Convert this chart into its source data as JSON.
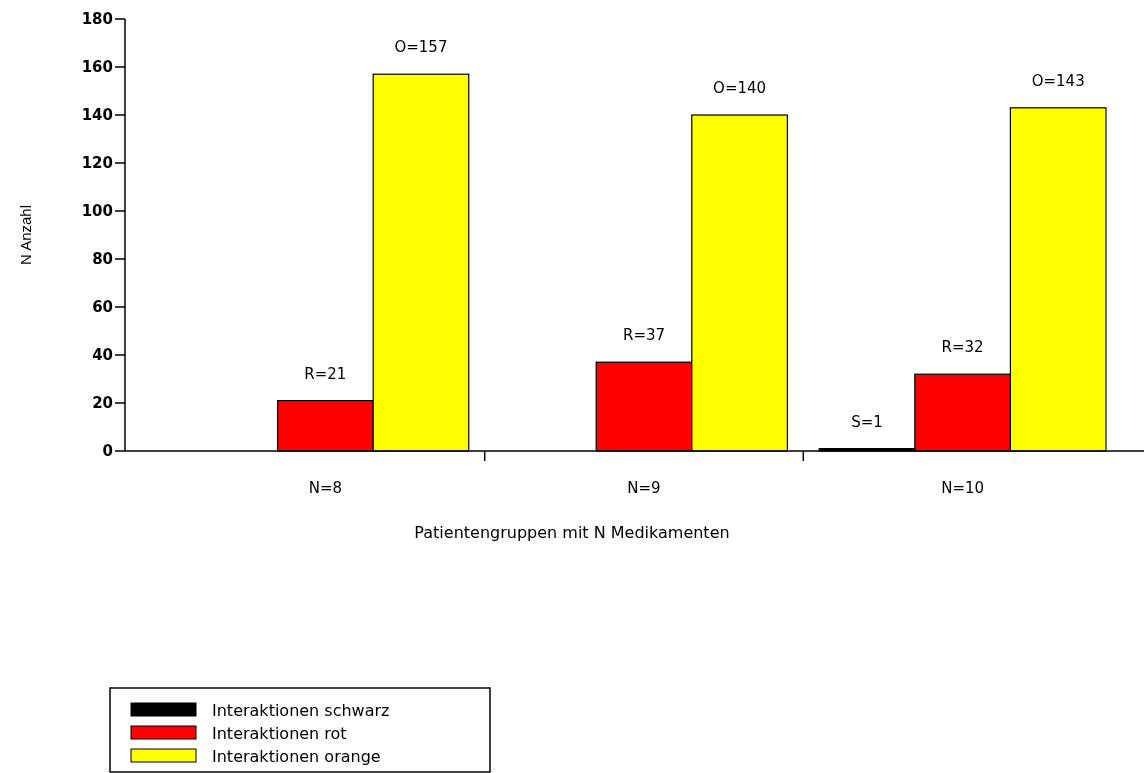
{
  "chart_data": {
    "type": "bar",
    "xlabel": "Patientengruppen mit N Medikamenten",
    "ylabel": "N Anzahl",
    "categories": [
      "N=8",
      "N=9",
      "N=10"
    ],
    "series": [
      {
        "name": "Interaktionen schwarz",
        "color": "#000000",
        "values": [
          null,
          null,
          1
        ],
        "value_labels": [
          null,
          null,
          "S=1"
        ]
      },
      {
        "name": "Interaktionen rot",
        "color": "#ff0000",
        "values": [
          21,
          37,
          32
        ],
        "value_labels": [
          "R=21",
          "R=37",
          "R=32"
        ]
      },
      {
        "name": "Interaktionen orange",
        "color": "#ffff00",
        "values": [
          157,
          140,
          143
        ],
        "value_labels": [
          "O=157",
          "O=140",
          "O=143"
        ]
      }
    ],
    "ylim": [
      0,
      180
    ],
    "yticks": [
      0,
      20,
      40,
      60,
      80,
      100,
      120,
      140,
      160,
      180
    ],
    "grid": false,
    "legend": "bottom left"
  }
}
